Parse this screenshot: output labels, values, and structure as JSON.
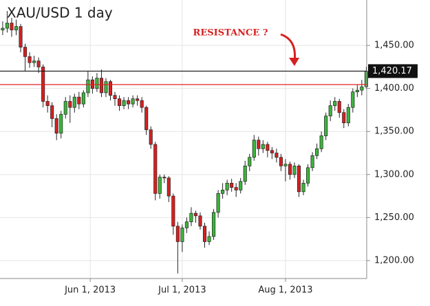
{
  "chart_data": {
    "type": "candlestick",
    "title": "XAU/USD 1 day",
    "annotation": "RESISTANCE ?",
    "ylim": [
      1180,
      1502
    ],
    "yticks": [
      {
        "value": 1200,
        "label": "1,200.00"
      },
      {
        "value": 1250,
        "label": "1,250.00"
      },
      {
        "value": 1300,
        "label": "1,300.00"
      },
      {
        "value": 1350,
        "label": "1,350.00"
      },
      {
        "value": 1400,
        "label": "1,400.00"
      },
      {
        "value": 1450,
        "label": "1,450.00"
      }
    ],
    "xlim": [
      -0.6,
      81.4
    ],
    "xticks": [
      {
        "value": 19.5,
        "label": "Jun 1, 2013"
      },
      {
        "value": 40,
        "label": "Jul 1, 2013"
      },
      {
        "value": 63,
        "label": "Aug 1, 2013"
      }
    ],
    "grid": true,
    "up_color": "#3cb43c",
    "down_color": "#d62020",
    "last_price": {
      "value": 1420.17,
      "label": "1,420.17"
    },
    "red_line": {
      "value": 1404.5,
      "color": "#e02020"
    },
    "open": [
      1468,
      1470,
      1476,
      1468,
      1472,
      1448,
      1437,
      1430,
      1432,
      1425,
      1385,
      1380,
      1365,
      1348,
      1370,
      1385,
      1378,
      1390,
      1382,
      1395,
      1410,
      1400,
      1412,
      1395,
      1408,
      1392,
      1388,
      1380,
      1386,
      1382,
      1388,
      1386,
      1378,
      1352,
      1335,
      1278,
      1297,
      1296,
      1275,
      1240,
      1222,
      1238,
      1245,
      1255,
      1252,
      1240,
      1222,
      1228,
      1256,
      1278,
      1282,
      1290,
      1285,
      1282,
      1292,
      1310,
      1320,
      1340,
      1330,
      1335,
      1328,
      1325,
      1320,
      1310,
      1312,
      1300,
      1310,
      1280,
      1290,
      1308,
      1322,
      1330,
      1345,
      1368,
      1380,
      1385,
      1372,
      1360,
      1378,
      1396,
      1398,
      1402
    ],
    "high": [
      1478,
      1490,
      1482,
      1480,
      1475,
      1452,
      1442,
      1438,
      1436,
      1428,
      1392,
      1384,
      1370,
      1374,
      1390,
      1392,
      1394,
      1396,
      1398,
      1420,
      1414,
      1418,
      1422,
      1412,
      1410,
      1396,
      1392,
      1390,
      1390,
      1392,
      1392,
      1390,
      1380,
      1356,
      1338,
      1300,
      1300,
      1298,
      1278,
      1245,
      1242,
      1250,
      1262,
      1258,
      1256,
      1244,
      1234,
      1260,
      1282,
      1290,
      1294,
      1295,
      1290,
      1296,
      1316,
      1324,
      1346,
      1344,
      1340,
      1338,
      1332,
      1330,
      1324,
      1318,
      1315,
      1314,
      1312,
      1294,
      1312,
      1326,
      1336,
      1350,
      1372,
      1386,
      1390,
      1388,
      1376,
      1382,
      1400,
      1404,
      1410,
      1425
    ],
    "low": [
      1462,
      1465,
      1460,
      1462,
      1442,
      1420,
      1424,
      1425,
      1418,
      1378,
      1372,
      1355,
      1340,
      1342,
      1365,
      1360,
      1372,
      1376,
      1378,
      1390,
      1394,
      1396,
      1390,
      1390,
      1386,
      1380,
      1374,
      1376,
      1376,
      1378,
      1380,
      1372,
      1346,
      1330,
      1270,
      1272,
      1290,
      1268,
      1230,
      1185,
      1210,
      1232,
      1240,
      1244,
      1236,
      1215,
      1218,
      1224,
      1250,
      1272,
      1276,
      1280,
      1274,
      1278,
      1288,
      1304,
      1316,
      1322,
      1325,
      1320,
      1318,
      1314,
      1304,
      1292,
      1294,
      1296,
      1274,
      1276,
      1286,
      1304,
      1318,
      1326,
      1340,
      1362,
      1374,
      1366,
      1354,
      1356,
      1372,
      1390,
      1392,
      1400
    ],
    "close": [
      1470,
      1476,
      1468,
      1472,
      1448,
      1437,
      1430,
      1432,
      1425,
      1385,
      1380,
      1365,
      1348,
      1370,
      1385,
      1378,
      1390,
      1382,
      1395,
      1410,
      1400,
      1412,
      1395,
      1408,
      1392,
      1388,
      1380,
      1386,
      1382,
      1388,
      1386,
      1378,
      1352,
      1335,
      1278,
      1297,
      1296,
      1275,
      1240,
      1222,
      1238,
      1245,
      1255,
      1252,
      1240,
      1222,
      1228,
      1256,
      1278,
      1282,
      1290,
      1285,
      1282,
      1292,
      1310,
      1320,
      1340,
      1330,
      1335,
      1328,
      1325,
      1320,
      1310,
      1312,
      1300,
      1310,
      1280,
      1290,
      1308,
      1322,
      1330,
      1345,
      1368,
      1380,
      1385,
      1372,
      1360,
      1378,
      1396,
      1398,
      1402,
      1420
    ]
  }
}
